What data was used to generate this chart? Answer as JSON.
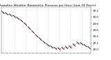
{
  "title": "Milwaukee Weather Barometric Pressure per Hour (Last 24 Hours)",
  "x_hours": [
    0,
    1,
    2,
    3,
    4,
    5,
    6,
    7,
    8,
    9,
    10,
    11,
    12,
    13,
    14,
    15,
    16,
    17,
    18,
    19,
    20,
    21,
    22,
    23
  ],
  "pressure": [
    30.14,
    30.1,
    30.06,
    30.02,
    29.96,
    29.88,
    29.78,
    29.66,
    29.54,
    29.42,
    29.32,
    29.22,
    29.14,
    29.08,
    29.04,
    29.02,
    29.04,
    29.06,
    29.08,
    29.14,
    29.2,
    29.18,
    29.12,
    29.06
  ],
  "line_color": "#cc0000",
  "marker_color": "#111111",
  "bg_color": "#ffffff",
  "grid_color": "#bbbbbb",
  "ylim_min": 28.9,
  "ylim_max": 30.3,
  "title_fontsize": 3.2,
  "tick_fontsize": 2.8,
  "yticks": [
    29.0,
    29.2,
    29.4,
    29.6,
    29.8,
    30.0,
    30.2
  ],
  "ytick_labels": [
    "29.0",
    "29.2",
    "29.4",
    "29.6",
    "29.8",
    "30.0",
    "30.2"
  ],
  "grid_x_positions": [
    0,
    3,
    6,
    9,
    12,
    15,
    18,
    21,
    23
  ]
}
